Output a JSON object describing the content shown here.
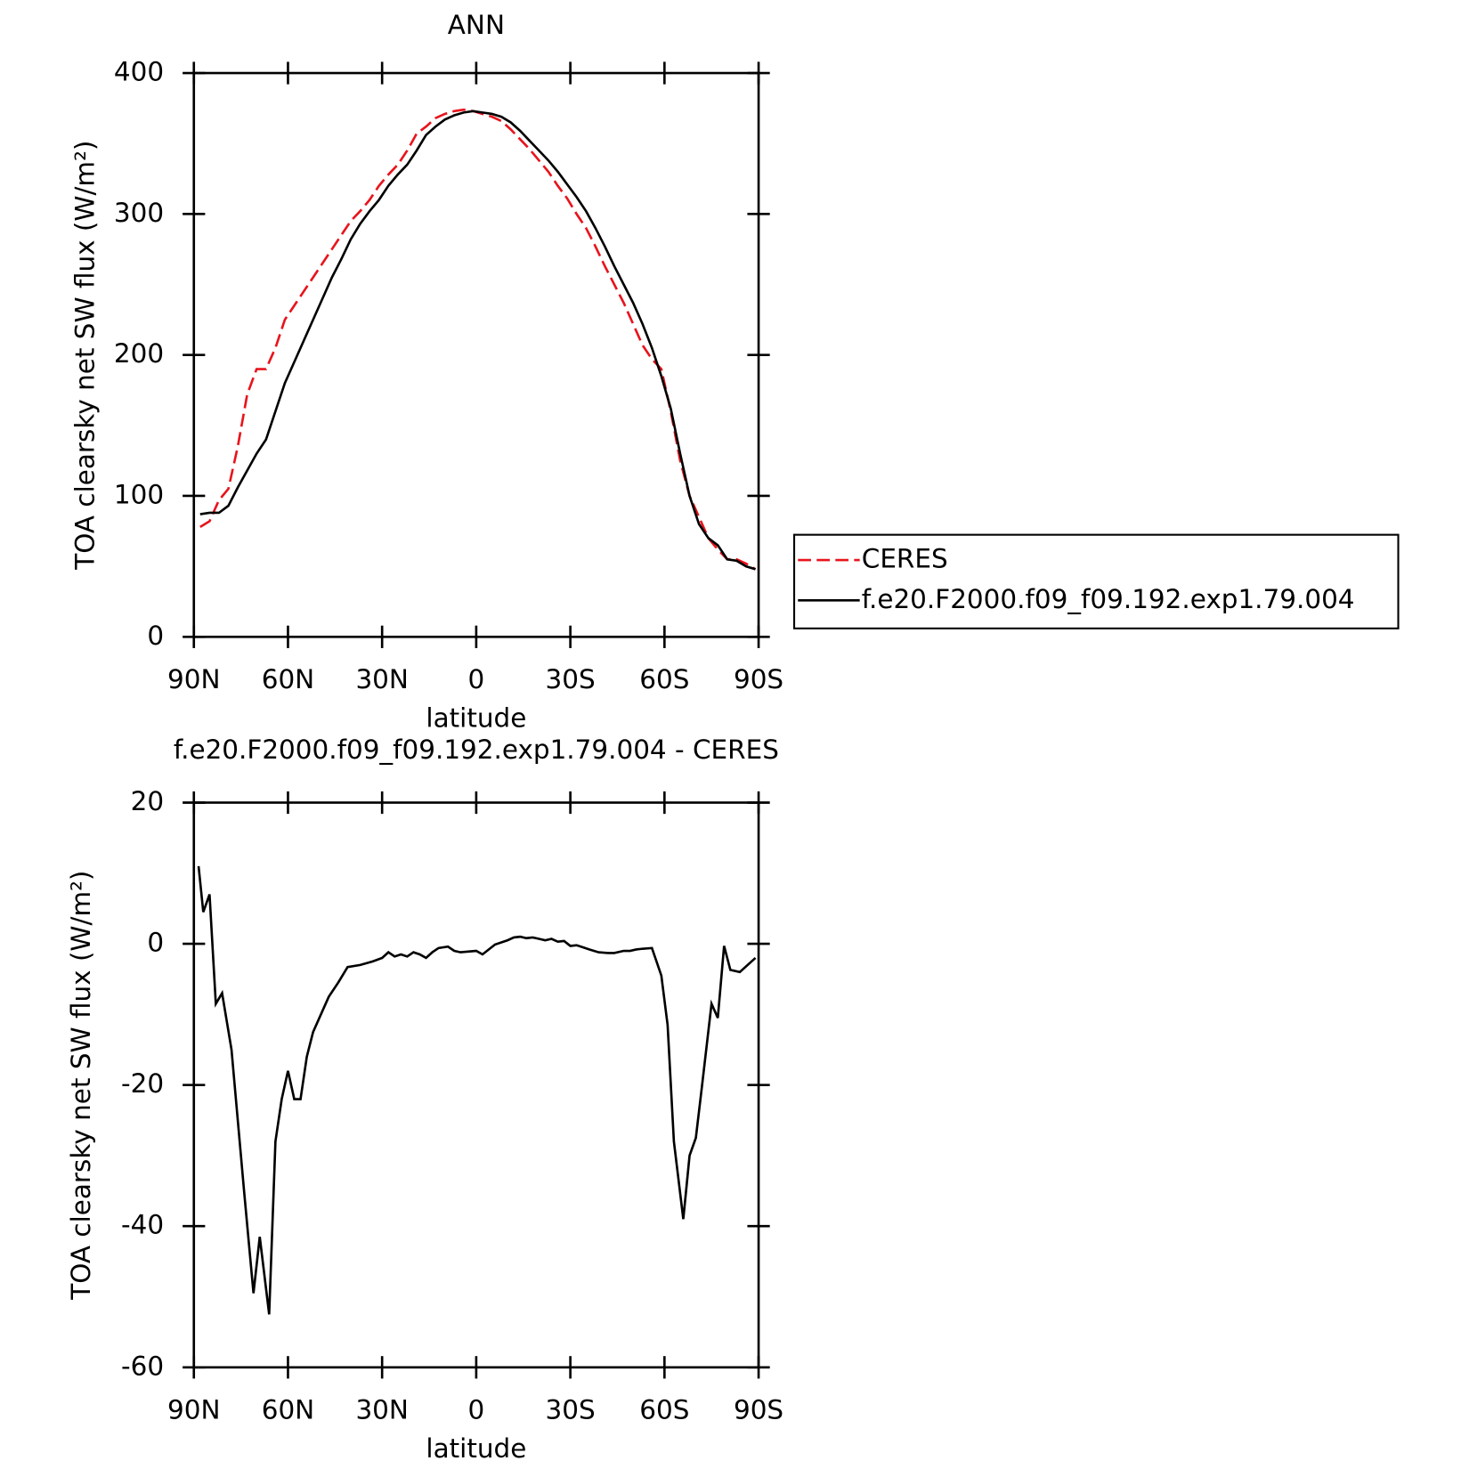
{
  "chart_data": [
    {
      "type": "line",
      "title": "ANN",
      "x_label": "latitude",
      "y_label": "TOA clearsky net SW flux (W/m²)",
      "x": [
        88,
        85,
        82,
        79,
        76,
        73,
        70,
        67,
        64,
        61,
        58,
        55,
        52,
        49,
        46,
        43,
        40,
        37,
        34,
        31,
        28,
        25,
        22,
        19,
        16,
        13,
        10,
        7,
        4,
        1,
        -2,
        -5,
        -8,
        -11,
        -14,
        -17,
        -20,
        -23,
        -26,
        -29,
        -32,
        -35,
        -38,
        -41,
        -44,
        -47,
        -50,
        -53,
        -56,
        -59,
        -62,
        -65,
        -68,
        -71,
        -74,
        -77,
        -80,
        -83,
        -86,
        -89
      ],
      "series": [
        {
          "name": "CERES",
          "color": "#e8141c",
          "line_style": "dashed",
          "values": [
            78,
            82,
            97,
            105,
            135,
            172,
            190,
            190,
            205,
            225,
            235,
            245,
            255,
            265,
            275,
            285,
            295,
            302,
            310,
            320,
            328,
            335,
            345,
            357,
            362,
            368,
            371,
            373,
            374,
            373,
            371,
            369,
            366,
            360,
            353,
            346,
            338,
            330,
            320,
            311,
            300,
            290,
            277,
            263,
            250,
            237,
            222,
            207,
            197,
            190,
            160,
            125,
            100,
            85,
            70,
            62,
            55,
            55,
            52,
            48
          ]
        },
        {
          "name": "f.e20.F2000.f09_f09.192.exp1.79.004",
          "color": "#000000",
          "line_style": "solid",
          "values": [
            87,
            88,
            88,
            93,
            106,
            118,
            130,
            140,
            160,
            180,
            195,
            210,
            225,
            240,
            255,
            268,
            282,
            293,
            302,
            310,
            320,
            328,
            335,
            345,
            356,
            362,
            367,
            370,
            372,
            373,
            372,
            371,
            369,
            365,
            359,
            352,
            345,
            338,
            330,
            321,
            312,
            302,
            290,
            277,
            263,
            250,
            237,
            222,
            205,
            185,
            162,
            130,
            100,
            80,
            70,
            65,
            55,
            54,
            50,
            48
          ]
        }
      ],
      "xlim": [
        90,
        -90
      ],
      "xticks": [
        {
          "value": 90,
          "label": "90N"
        },
        {
          "value": 60,
          "label": "60N"
        },
        {
          "value": 30,
          "label": "30N"
        },
        0,
        {
          "value": -30,
          "label": "30S"
        },
        {
          "value": -60,
          "label": "60S"
        },
        {
          "value": -90,
          "label": "90S"
        }
      ],
      "ylim": [
        0,
        400
      ],
      "yticks": [
        0,
        100,
        200,
        300,
        400
      ],
      "legend": "right"
    },
    {
      "type": "line",
      "title": "f.e20.F2000.f09_f09.192.exp1.79.004 - CERES",
      "x_label": "latitude",
      "y_label": "TOA clearsky net SW flux (W/m²)",
      "x": [
        88.5,
        87,
        85,
        83,
        81,
        78,
        74,
        71,
        69,
        66,
        64,
        62,
        60,
        58,
        56,
        54,
        52,
        50,
        47,
        44,
        41,
        37,
        33,
        30,
        28,
        26,
        24,
        22,
        20,
        18,
        16,
        14,
        12,
        9,
        7,
        5,
        0,
        -2,
        -6,
        -10,
        -12,
        -14,
        -16,
        -18,
        -20,
        -22,
        -24,
        -26,
        -28,
        -30,
        -32,
        -34,
        -36,
        -39,
        -42,
        -44,
        -47,
        -49,
        -51,
        -53,
        -56,
        -59,
        -61,
        -63,
        -66,
        -68,
        -70,
        -72,
        -75,
        -77,
        -79,
        -81,
        -84,
        -89
      ],
      "values": [
        11,
        4.5,
        7,
        -8.5,
        -7,
        -15,
        -35,
        -49.5,
        -41.5,
        -52.5,
        -28,
        -22,
        -18,
        -22,
        -22,
        -16,
        -12.5,
        -10.5,
        -7.5,
        -5.5,
        -3.3,
        -3,
        -2.5,
        -2,
        -1.2,
        -1.8,
        -1.5,
        -1.8,
        -1.2,
        -1.5,
        -2,
        -1.2,
        -0.6,
        -0.4,
        -1,
        -1.2,
        -1,
        -1.5,
        -0.1,
        0.5,
        0.9,
        1,
        0.8,
        0.9,
        0.7,
        0.5,
        0.7,
        0.3,
        0.4,
        -0.3,
        -0.2,
        -0.5,
        -0.8,
        -1.2,
        -1.3,
        -1.3,
        -1,
        -1,
        -0.8,
        -0.7,
        -0.6,
        -4.5,
        -11.5,
        -28,
        -39,
        -30,
        -27.5,
        -20,
        -8.5,
        -10.5,
        -0.3,
        -3.7,
        -4,
        -2
      ],
      "color": "#000000",
      "xlim": [
        90,
        -90
      ],
      "xticks": [
        {
          "value": 90,
          "label": "90N"
        },
        {
          "value": 60,
          "label": "60N"
        },
        {
          "value": 30,
          "label": "30N"
        },
        0,
        {
          "value": -30,
          "label": "30S"
        },
        {
          "value": -60,
          "label": "60S"
        },
        {
          "value": -90,
          "label": "90S"
        }
      ],
      "ylim": [
        -60,
        20
      ],
      "yticks": [
        -60,
        -40,
        -20,
        0,
        20
      ]
    }
  ]
}
